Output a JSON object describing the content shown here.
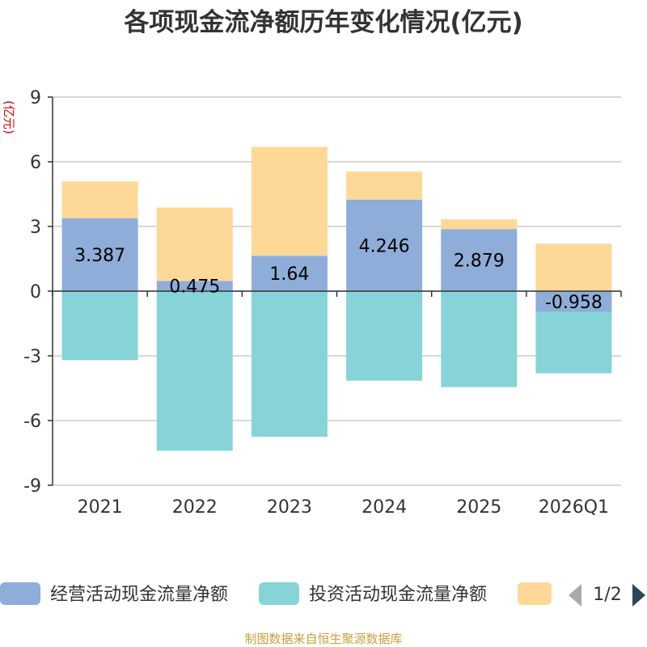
{
  "chart_data": {
    "type": "bar",
    "stacked": true,
    "title": "各项现金流净额历年变化情况(亿元)",
    "ylabel": "(亿元)",
    "ylim": [
      -9,
      9
    ],
    "yticks": [
      9,
      6,
      3,
      0,
      -3,
      -6,
      -9
    ],
    "categories": [
      "2021",
      "2022",
      "2023",
      "2024",
      "2025",
      "2026Q1"
    ],
    "series": [
      {
        "name": "经营活动现金流量净额",
        "color": "#8eadd9",
        "values": [
          3.387,
          0.475,
          1.64,
          4.246,
          2.879,
          -0.958
        ],
        "labels": [
          "3.387",
          "0.475",
          "1.64",
          "4.246",
          "2.879",
          "-0.958"
        ]
      },
      {
        "name": "投资活动现金流量净额",
        "color": "#86d4d8",
        "values": [
          -3.2,
          -7.4,
          -6.75,
          -4.15,
          -4.45,
          -2.85
        ]
      },
      {
        "name": "",
        "color": "#fed896",
        "values": [
          1.7,
          3.4,
          5.05,
          1.3,
          0.45,
          2.2
        ]
      }
    ],
    "legend": {
      "page": "1/2"
    },
    "source": "制图数据来自恒生聚源数据库"
  }
}
